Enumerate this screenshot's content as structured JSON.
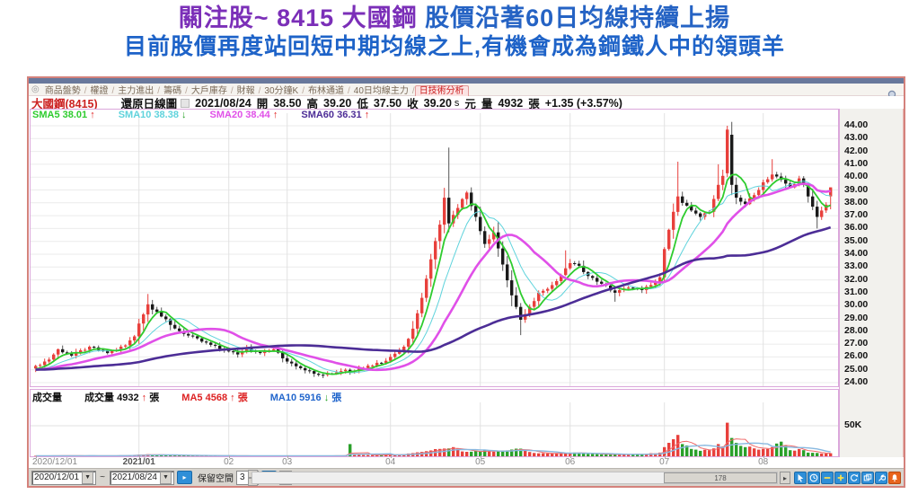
{
  "headline": {
    "line1_part1": "關注股~ 8415 大國鋼",
    "line1_part2": "  股價沿著60日均線持續上揚",
    "line2": "目前股價再度站回短中期均線之上,有機會成為鋼鐵人中的領頭羊"
  },
  "window": {
    "tabs": {
      "home_icon": "◎",
      "separator": "/",
      "items": [
        "商品盤勢",
        "權證",
        "主力進出",
        "籌碼",
        "大戶庫存",
        "財報",
        "30分鐘K",
        "布林通道",
        "40日均線主力",
        "日技術分析"
      ],
      "active": "日技術分析"
    },
    "info": {
      "stock": "大國鋼(8415)",
      "chart_type": "還原日線圖",
      "date": "2021/08/24",
      "open_label": "開",
      "open": "38.50",
      "high_label": "高",
      "high": "39.20",
      "low_label": "低",
      "low": "37.50",
      "close_label": "收",
      "close": "39.20",
      "flag": "s",
      "unit": "元",
      "vol_label": "量",
      "volume": "4932",
      "vol_unit": "張",
      "change": "+1.35 (+3.57%)"
    },
    "sma_legend": [
      {
        "label": "SMA5",
        "value": "38.01",
        "dir": "up",
        "color": "#2ecc2e"
      },
      {
        "label": "SMA10",
        "value": "38.38",
        "dir": "down",
        "color": "#5fd3dc"
      },
      {
        "label": "SMA20",
        "value": "38.44",
        "dir": "up",
        "color": "#e050e8"
      },
      {
        "label": "SMA60",
        "value": "36.31",
        "dir": "up",
        "color": "#4c2d96"
      }
    ],
    "vol_labels": {
      "panel": "成交量",
      "current_label": "成交量",
      "current": "4932",
      "current_unit": "張",
      "ma5_label": "MA5",
      "ma5": "4568",
      "ma5_unit": "張",
      "ma10_label": "MA10",
      "ma10": "5916",
      "ma10_unit": "張"
    },
    "icons": {
      "arrow_up": "↑",
      "arrow_down": "↓",
      "caret_down": "▼",
      "spin_up": "▲",
      "spin_down": "▼",
      "left_arrow": "◂",
      "right_arrow": "▸",
      "go_glyph": "▸"
    },
    "toolbar": {
      "date_from": "2020/12/01",
      "tilde": "~",
      "date_to": "2021/08/24",
      "space_label": "保留空間",
      "space_value": "3",
      "scroll_thumb": "178"
    }
  },
  "chart_data": {
    "type": "candlestick+volume",
    "title": "還原日線圖 2021/08/24",
    "bars": 178,
    "first_open": 25.1,
    "ylim": [
      24,
      44
    ],
    "y_step": 1,
    "price_pad": 25.0,
    "vol_pad": 800,
    "vol_axis_value": 50000,
    "vol_axis_label": "50K",
    "sma_periods": [
      5,
      10,
      20,
      60
    ],
    "last_bar": {
      "date": "2021/08/24",
      "open": 38.5,
      "high": 39.2,
      "low": 37.5,
      "close": 39.2,
      "volume": 4932,
      "change": 1.35,
      "change_pct": 3.57
    },
    "x_months": [
      [
        0,
        "2020/12/01"
      ],
      [
        23,
        "2021/01"
      ],
      [
        43,
        "02"
      ],
      [
        56,
        "03"
      ],
      [
        79,
        "04"
      ],
      [
        99,
        "05"
      ],
      [
        119,
        "06"
      ],
      [
        140,
        "07"
      ],
      [
        162,
        "08"
      ]
    ],
    "close_anchors": [
      [
        0,
        25.3
      ],
      [
        3,
        25.8
      ],
      [
        5,
        26.6
      ],
      [
        8,
        26.1
      ],
      [
        12,
        26.8
      ],
      [
        16,
        26.3
      ],
      [
        20,
        26.9
      ],
      [
        22,
        27.6
      ],
      [
        23,
        28.6
      ],
      [
        25,
        30.1
      ],
      [
        27,
        29.5
      ],
      [
        30,
        28.5
      ],
      [
        33,
        27.8
      ],
      [
        37,
        27.2
      ],
      [
        42,
        26.5
      ],
      [
        45,
        26.2
      ],
      [
        47,
        26.7
      ],
      [
        50,
        26.3
      ],
      [
        53,
        26.6
      ],
      [
        55,
        25.9
      ],
      [
        57,
        25.5
      ],
      [
        61,
        24.9
      ],
      [
        64,
        24.6
      ],
      [
        68,
        24.9
      ],
      [
        69,
        25.0
      ],
      [
        70,
        24.85
      ],
      [
        72,
        25.1
      ],
      [
        78,
        25.7
      ],
      [
        79,
        26.0
      ],
      [
        82,
        26.8
      ],
      [
        84,
        28.2
      ],
      [
        86,
        30.6
      ],
      [
        88,
        33.6
      ],
      [
        90,
        36.3
      ],
      [
        91,
        38.4
      ],
      [
        92,
        36.4
      ],
      [
        94,
        37.6
      ],
      [
        96,
        38.8
      ],
      [
        98,
        36.9
      ],
      [
        100,
        34.8
      ],
      [
        102,
        35.7
      ],
      [
        104,
        33.2
      ],
      [
        106,
        30.8
      ],
      [
        108,
        28.9
      ],
      [
        110,
        29.9
      ],
      [
        112,
        31.0
      ],
      [
        114,
        31.3
      ],
      [
        116,
        31.9
      ],
      [
        118,
        32.9
      ],
      [
        119,
        33.3
      ],
      [
        121,
        33.1
      ],
      [
        123,
        32.3
      ],
      [
        126,
        31.7
      ],
      [
        129,
        31.0
      ],
      [
        132,
        31.4
      ],
      [
        135,
        31.2
      ],
      [
        137,
        31.6
      ],
      [
        139,
        32.2
      ],
      [
        140,
        34.4
      ],
      [
        141,
        35.9
      ],
      [
        142,
        37.3
      ],
      [
        143,
        38.5
      ],
      [
        144,
        38.0
      ],
      [
        146,
        37.4
      ],
      [
        148,
        36.9
      ],
      [
        150,
        37.3
      ],
      [
        151,
        38.3
      ],
      [
        152,
        39.4
      ],
      [
        153,
        40.1
      ],
      [
        154,
        43.7
      ],
      [
        155,
        39.4
      ],
      [
        156,
        38.4
      ],
      [
        158,
        37.9
      ],
      [
        160,
        38.6
      ],
      [
        161,
        39.0
      ],
      [
        162,
        39.6
      ],
      [
        164,
        40.2
      ],
      [
        166,
        39.8
      ],
      [
        168,
        39.2
      ],
      [
        170,
        39.9
      ],
      [
        171,
        39.4
      ],
      [
        172,
        38.5
      ],
      [
        174,
        36.9
      ],
      [
        175,
        37.4
      ],
      [
        176,
        37.85
      ],
      [
        177,
        39.2
      ]
    ],
    "specials": {
      "25": {
        "h": 30.9
      },
      "64": {
        "l": 24.35
      },
      "92": {
        "h": 42.3
      },
      "108": {
        "l": 27.7
      },
      "118": {
        "h": 34.3
      },
      "129": {
        "l": 30.3
      },
      "143": {
        "h": 41.2
      },
      "152": {
        "h": 41.0
      },
      "154": {
        "o": 40.3,
        "h": 44.0,
        "l": 40.0,
        "c": 43.7
      },
      "155": {
        "o": 43.3,
        "c": 39.4,
        "l": 38.6
      },
      "164": {
        "h": 41.4
      },
      "174": {
        "l": 36.0
      },
      "177": {
        "o": 38.5,
        "h": 39.2,
        "l": 37.5,
        "c": 39.2
      }
    },
    "volume_anchors": [
      [
        0,
        700
      ],
      [
        5,
        1100
      ],
      [
        10,
        900
      ],
      [
        15,
        800
      ],
      [
        20,
        1400
      ],
      [
        23,
        2600
      ],
      [
        25,
        3300
      ],
      [
        28,
        1800
      ],
      [
        33,
        1200
      ],
      [
        40,
        900
      ],
      [
        45,
        800
      ],
      [
        50,
        700
      ],
      [
        55,
        800
      ],
      [
        60,
        700
      ],
      [
        65,
        900
      ],
      [
        69,
        1300
      ],
      [
        70,
        20000
      ],
      [
        71,
        3000
      ],
      [
        74,
        2000
      ],
      [
        78,
        2400
      ],
      [
        80,
        3000
      ],
      [
        83,
        4500
      ],
      [
        85,
        6500
      ],
      [
        88,
        9500
      ],
      [
        90,
        12000
      ],
      [
        92,
        13000
      ],
      [
        93,
        15000
      ],
      [
        95,
        8000
      ],
      [
        98,
        9000
      ],
      [
        101,
        8000
      ],
      [
        104,
        9500
      ],
      [
        106,
        11000
      ],
      [
        108,
        12500
      ],
      [
        110,
        7000
      ],
      [
        113,
        5000
      ],
      [
        116,
        4500
      ],
      [
        118,
        5200
      ],
      [
        121,
        6000
      ],
      [
        124,
        4000
      ],
      [
        127,
        3200
      ],
      [
        130,
        2800
      ],
      [
        133,
        3500
      ],
      [
        136,
        3800
      ],
      [
        139,
        6000
      ],
      [
        140,
        15000
      ],
      [
        141,
        22000
      ],
      [
        142,
        28000
      ],
      [
        143,
        35000
      ],
      [
        144,
        20000
      ],
      [
        146,
        12000
      ],
      [
        148,
        9000
      ],
      [
        150,
        10000
      ],
      [
        152,
        20000
      ],
      [
        153,
        16000
      ],
      [
        154,
        55000
      ],
      [
        155,
        30000
      ],
      [
        156,
        22000
      ],
      [
        158,
        15000
      ],
      [
        160,
        13000
      ],
      [
        162,
        12000
      ],
      [
        164,
        15000
      ],
      [
        166,
        24000
      ],
      [
        168,
        10000
      ],
      [
        170,
        12000
      ],
      [
        172,
        6000
      ],
      [
        174,
        5500
      ],
      [
        176,
        4500
      ],
      [
        177,
        4932
      ]
    ],
    "colors": {
      "up": "#e8403c",
      "down": "#1a1a1a",
      "sma5": "#2ecc2e",
      "sma10": "#5fd3dc",
      "sma20": "#e050e8",
      "sma60": "#4c2d96",
      "vol_up": "#e8403c",
      "vol_down": "#2aa02a",
      "vol_ma5": "#f06868",
      "vol_ma10": "#88b8e0",
      "grid_h": "#ebebeb",
      "grid_v": "#e2e2e2",
      "frame": "#dba7db"
    },
    "legend_position": "top-left",
    "grid": true
  }
}
